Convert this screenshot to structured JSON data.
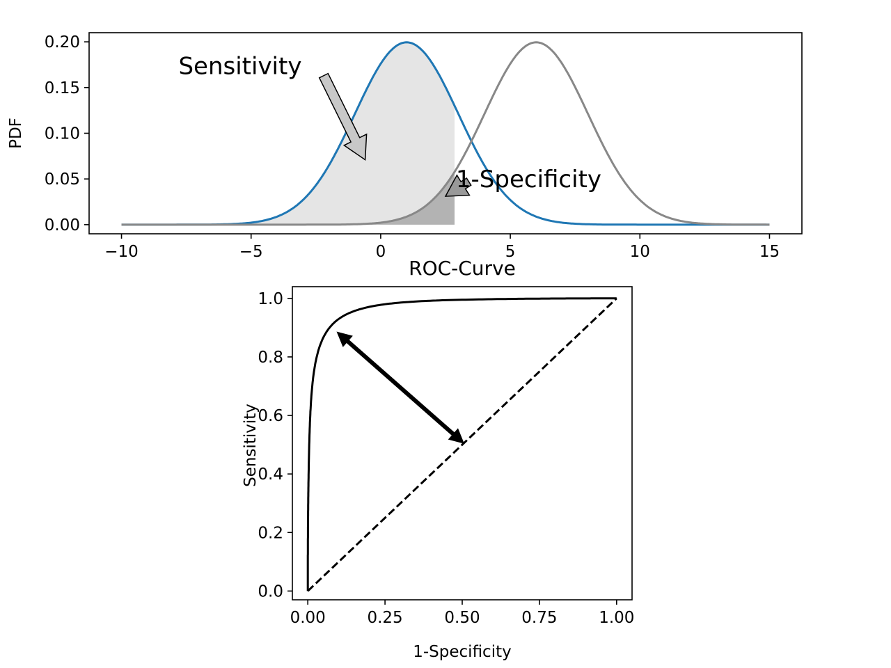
{
  "chart_data": [
    {
      "type": "line",
      "title": "",
      "xlabel": "",
      "ylabel": "PDF",
      "xlim": [
        -11.25,
        16.25
      ],
      "ylim": [
        -0.01,
        0.21
      ],
      "x_ticks": [
        -10,
        -5,
        0,
        5,
        10,
        15
      ],
      "x_tick_labels": [
        "−10",
        "−5",
        "0",
        "5",
        "10",
        "15"
      ],
      "y_ticks": [
        0.0,
        0.05,
        0.1,
        0.15,
        0.2
      ],
      "y_tick_labels": [
        "0.00",
        "0.05",
        "0.10",
        "0.15",
        "0.20"
      ],
      "grid": false,
      "series": [
        {
          "mean": 1,
          "sd": 2,
          "x_range": [
            -10,
            15
          ],
          "color": "#1f77b4"
        },
        {
          "mean": 6,
          "sd": 2,
          "x_range": [
            -10,
            15
          ],
          "color": "#888888"
        }
      ],
      "threshold": 2.85,
      "fills": [
        {
          "under_series": 0,
          "x_range": [
            -10,
            2.85
          ],
          "color": "#e5e5e5"
        },
        {
          "under_series": 1,
          "x_range": [
            -10,
            2.85
          ],
          "color": "#b3b3b3"
        }
      ],
      "annotations": [
        {
          "text": "Sensitivity",
          "text_at": [
            -7.8,
            0.174
          ],
          "arrow_from": [
            -2.2,
            0.163
          ],
          "arrow_to": [
            -0.6,
            0.071
          ],
          "arrow_color": "#c8c8c8"
        },
        {
          "text": "1-Specificity",
          "text_at": [
            2.9,
            0.05
          ],
          "arrow_from": [
            3.4,
            0.047
          ],
          "arrow_to": [
            2.5,
            0.031
          ],
          "arrow_color": "#999999"
        }
      ]
    },
    {
      "type": "line",
      "title": "ROC-Curve",
      "xlabel": "1-Specificity",
      "ylabel": "Sensitivity",
      "xlim": [
        -0.05,
        1.05
      ],
      "ylim": [
        -0.03,
        1.04
      ],
      "x_ticks": [
        0.0,
        0.25,
        0.5,
        0.75,
        1.0
      ],
      "x_tick_labels": [
        "0.00",
        "0.25",
        "0.50",
        "0.75",
        "1.00"
      ],
      "y_ticks": [
        0.0,
        0.2,
        0.4,
        0.6,
        0.8,
        1.0
      ],
      "y_tick_labels": [
        "0.0",
        "0.2",
        "0.4",
        "0.6",
        "0.8",
        "1.0"
      ],
      "grid": false,
      "roc_curve": {
        "separation": 2.5,
        "color": "#000000"
      },
      "diagonal": {
        "from": [
          0,
          0
        ],
        "to": [
          1,
          1
        ],
        "style": "dashed",
        "color": "#000000"
      },
      "double_arrow": {
        "from": [
          0.095,
          0.885
        ],
        "to": [
          0.505,
          0.505
        ],
        "color": "#000000"
      }
    }
  ]
}
